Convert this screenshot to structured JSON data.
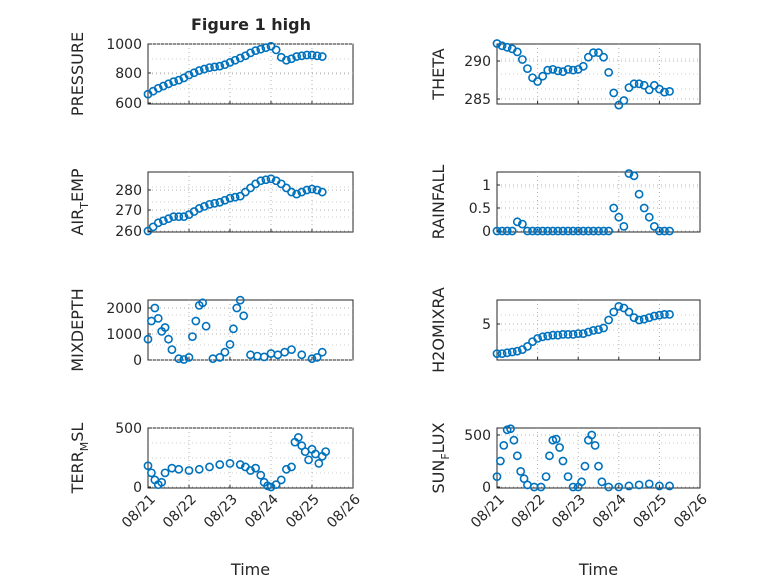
{
  "figure": {
    "title": "Figure 1 high",
    "marker_color": "#0072BD",
    "grid": true,
    "marker": "open-circle",
    "x_axis": {
      "label": "Time",
      "tick_labels": [
        "08/21",
        "08/22",
        "08/23",
        "08/24",
        "08/25",
        "08/26"
      ],
      "label_rotation_deg": -45
    }
  },
  "chart_data": [
    {
      "type": "scatter",
      "ylabel": "PRESSURE",
      "yticks": [
        "600",
        "800",
        "1000"
      ],
      "ylim": [
        600,
        1000
      ],
      "xlim": [
        "08/21",
        "08/26"
      ],
      "series": [
        {
          "x": [
            "08/21 00:00",
            "08/21 03:00",
            "08/21 06:00",
            "08/21 09:00",
            "08/21 12:00",
            "08/21 15:00",
            "08/21 18:00",
            "08/21 21:00",
            "08/22 00:00",
            "08/22 03:00",
            "08/22 06:00",
            "08/22 09:00",
            "08/22 12:00",
            "08/22 15:00",
            "08/22 18:00",
            "08/22 21:00",
            "08/23 00:00",
            "08/23 03:00",
            "08/23 06:00",
            "08/23 09:00",
            "08/23 12:00",
            "08/23 15:00",
            "08/23 18:00",
            "08/23 21:00",
            "08/24 00:00",
            "08/24 03:00",
            "08/24 06:00",
            "08/24 09:00",
            "08/24 12:00",
            "08/24 15:00",
            "08/24 18:00",
            "08/24 21:00",
            "08/25 00:00",
            "08/25 03:00",
            "08/25 06:00"
          ],
          "y": [
            660,
            680,
            700,
            715,
            730,
            745,
            755,
            770,
            790,
            805,
            820,
            830,
            840,
            845,
            850,
            860,
            875,
            890,
            905,
            920,
            940,
            955,
            965,
            975,
            985,
            960,
            910,
            890,
            900,
            915,
            920,
            925,
            925,
            920,
            915
          ]
        }
      ]
    },
    {
      "type": "scatter",
      "ylabel": "THETA",
      "yticks": [
        "285",
        "290"
      ],
      "ylim": [
        284,
        292.5
      ],
      "xlim": [
        "08/21",
        "08/26"
      ],
      "series": [
        {
          "x": [
            "08/21 00:00",
            "08/21 03:00",
            "08/21 06:00",
            "08/21 09:00",
            "08/21 12:00",
            "08/21 15:00",
            "08/21 18:00",
            "08/21 21:00",
            "08/22 00:00",
            "08/22 03:00",
            "08/22 06:00",
            "08/22 09:00",
            "08/22 12:00",
            "08/22 15:00",
            "08/22 18:00",
            "08/22 21:00",
            "08/23 00:00",
            "08/23 03:00",
            "08/23 06:00",
            "08/23 09:00",
            "08/23 12:00",
            "08/23 15:00",
            "08/23 18:00",
            "08/23 21:00",
            "08/24 00:00",
            "08/24 03:00",
            "08/24 06:00",
            "08/24 09:00",
            "08/24 12:00",
            "08/24 15:00",
            "08/24 18:00",
            "08/24 21:00",
            "08/25 00:00",
            "08/25 03:00",
            "08/25 06:00"
          ],
          "y": [
            292.3,
            292,
            291.8,
            291.6,
            291.2,
            290.2,
            289,
            287.8,
            287.3,
            288,
            288.8,
            288.9,
            288.7,
            288.6,
            288.9,
            288.8,
            288.9,
            289.3,
            290.5,
            291.1,
            291.1,
            290.5,
            288.5,
            285.8,
            284.2,
            284.8,
            286.5,
            287,
            287,
            286.8,
            286.2,
            286.8,
            286.3,
            285.9,
            286
          ],
          "_c": 0
        }
      ]
    },
    {
      "type": "scatter",
      "ylabel": "AIR_TEMP",
      "yticks": [
        "260",
        "270",
        "280"
      ],
      "ylim": [
        258,
        287
      ],
      "xlim": [
        "08/21",
        "08/26"
      ],
      "series": [
        {
          "x": [
            "08/21 00:00",
            "08/21 03:00",
            "08/21 06:00",
            "08/21 09:00",
            "08/21 12:00",
            "08/21 15:00",
            "08/21 18:00",
            "08/21 21:00",
            "08/22 00:00",
            "08/22 03:00",
            "08/22 06:00",
            "08/22 09:00",
            "08/22 12:00",
            "08/22 15:00",
            "08/22 18:00",
            "08/22 21:00",
            "08/23 00:00",
            "08/23 03:00",
            "08/23 06:00",
            "08/23 09:00",
            "08/23 12:00",
            "08/23 15:00",
            "08/23 18:00",
            "08/23 21:00",
            "08/24 00:00",
            "08/24 03:00",
            "08/24 06:00",
            "08/24 09:00",
            "08/24 12:00",
            "08/24 15:00",
            "08/24 18:00",
            "08/24 21:00",
            "08/25 00:00",
            "08/25 03:00",
            "08/25 06:00"
          ],
          "y": [
            260,
            262,
            264,
            265,
            266,
            267,
            267,
            267,
            268,
            269.5,
            271,
            272,
            273,
            273.5,
            274,
            275,
            276,
            276.5,
            277,
            279,
            281,
            283,
            284.5,
            285,
            285.5,
            284.5,
            283,
            281,
            279,
            278,
            279,
            280,
            280.5,
            280,
            279
          ]
        }
      ]
    },
    {
      "type": "scatter",
      "ylabel": "RAINFALL",
      "yticks": [
        "0",
        "0.5",
        "1"
      ],
      "ylim": [
        -0.05,
        1.3
      ],
      "xlim": [
        "08/21",
        "08/26"
      ],
      "series": [
        {
          "x": [
            "08/21 00:00",
            "08/21 03:00",
            "08/21 06:00",
            "08/21 09:00",
            "08/21 12:00",
            "08/21 15:00",
            "08/21 18:00",
            "08/21 21:00",
            "08/22 00:00",
            "08/22 03:00",
            "08/22 06:00",
            "08/22 09:00",
            "08/22 12:00",
            "08/22 15:00",
            "08/22 18:00",
            "08/22 21:00",
            "08/23 00:00",
            "08/23 03:00",
            "08/23 06:00",
            "08/23 09:00",
            "08/23 12:00",
            "08/23 15:00",
            "08/23 18:00",
            "08/23 21:00",
            "08/24 00:00",
            "08/24 03:00",
            "08/24 06:00",
            "08/24 09:00",
            "08/24 12:00",
            "08/24 15:00",
            "08/24 18:00",
            "08/24 21:00",
            "08/25 00:00",
            "08/25 03:00",
            "08/25 06:00"
          ],
          "y": [
            0,
            0,
            0,
            0,
            0.2,
            0.15,
            0,
            0,
            0,
            0,
            0,
            0,
            0,
            0,
            0,
            0,
            0,
            0,
            0,
            0,
            0,
            0,
            0,
            0.5,
            0.3,
            0.1,
            1.25,
            1.2,
            0.8,
            0.5,
            0.3,
            0.1,
            0,
            0,
            0
          ]
        }
      ]
    },
    {
      "type": "scatter",
      "ylabel": "MIXDEPTH",
      "yticks": [
        "0",
        "1000",
        "2000"
      ],
      "ylim": [
        -100,
        2400
      ],
      "xlim": [
        "08/21",
        "08/26"
      ],
      "series": [
        {
          "x": [
            "08/21 00:00",
            "08/21 02:00",
            "08/21 04:00",
            "08/21 06:00",
            "08/21 08:00",
            "08/21 10:00",
            "08/21 12:00",
            "08/21 14:00",
            "08/21 18:00",
            "08/21 21:00",
            "08/22 00:00",
            "08/22 02:00",
            "08/22 04:00",
            "08/22 06:00",
            "08/22 08:00",
            "08/22 10:00",
            "08/22 14:00",
            "08/22 18:00",
            "08/22 21:00",
            "08/23 00:00",
            "08/23 02:00",
            "08/23 04:00",
            "08/23 06:00",
            "08/23 08:00",
            "08/23 12:00",
            "08/23 16:00",
            "08/23 20:00",
            "08/24 00:00",
            "08/24 04:00",
            "08/24 08:00",
            "08/24 12:00",
            "08/24 18:00",
            "08/25 00:00",
            "08/25 03:00",
            "08/25 06:00"
          ],
          "y": [
            800,
            1500,
            2000,
            1600,
            1100,
            1250,
            800,
            400,
            50,
            20,
            100,
            900,
            1500,
            2100,
            2200,
            1300,
            50,
            100,
            300,
            600,
            1200,
            2000,
            2300,
            1700,
            200,
            150,
            120,
            250,
            200,
            300,
            400,
            200,
            50,
            100,
            300
          ]
        }
      ]
    },
    {
      "type": "scatter",
      "ylabel": "H2OMIXRA",
      "yticks": [
        "5"
      ],
      "ylim": [
        0.5,
        8
      ],
      "xlim": [
        "08/21",
        "08/26"
      ],
      "series": [
        {
          "x": [
            "08/21 00:00",
            "08/21 03:00",
            "08/21 06:00",
            "08/21 09:00",
            "08/21 12:00",
            "08/21 15:00",
            "08/21 18:00",
            "08/21 21:00",
            "08/22 00:00",
            "08/22 03:00",
            "08/22 06:00",
            "08/22 09:00",
            "08/22 12:00",
            "08/22 15:00",
            "08/22 18:00",
            "08/22 21:00",
            "08/23 00:00",
            "08/23 03:00",
            "08/23 06:00",
            "08/23 09:00",
            "08/23 12:00",
            "08/23 15:00",
            "08/23 18:00",
            "08/23 21:00",
            "08/24 00:00",
            "08/24 03:00",
            "08/24 06:00",
            "08/24 09:00",
            "08/24 12:00",
            "08/24 15:00",
            "08/24 18:00",
            "08/24 21:00",
            "08/25 00:00",
            "08/25 03:00",
            "08/25 06:00"
          ],
          "y": [
            1.3,
            1.3,
            1.4,
            1.5,
            1.6,
            1.8,
            2.2,
            2.8,
            3.2,
            3.4,
            3.5,
            3.6,
            3.6,
            3.7,
            3.7,
            3.7,
            3.8,
            3.8,
            4.0,
            4.2,
            4.3,
            4.5,
            5.5,
            6.5,
            7.2,
            7.0,
            6.5,
            5.8,
            5.5,
            5.6,
            5.8,
            6.0,
            6.1,
            6.2,
            6.2
          ]
        }
      ]
    },
    {
      "type": "scatter",
      "ylabel": "TERR_MSL",
      "yticks": [
        "0",
        "500"
      ],
      "ylim": [
        -20,
        530
      ],
      "xlim": [
        "08/21",
        "08/26"
      ],
      "series": [
        {
          "x": [
            "08/21 00:00",
            "08/21 02:00",
            "08/21 04:00",
            "08/21 06:00",
            "08/21 08:00",
            "08/21 10:00",
            "08/21 14:00",
            "08/21 18:00",
            "08/22 00:00",
            "08/22 06:00",
            "08/22 12:00",
            "08/22 18:00",
            "08/23 00:00",
            "08/23 06:00",
            "08/23 09:00",
            "08/23 12:00",
            "08/23 15:00",
            "08/23 18:00",
            "08/23 20:00",
            "08/23 22:00",
            "08/24 00:00",
            "08/24 03:00",
            "08/24 06:00",
            "08/24 09:00",
            "08/24 12:00",
            "08/24 14:00",
            "08/24 16:00",
            "08/24 18:00",
            "08/24 20:00",
            "08/24 22:00",
            "08/25 00:00",
            "08/25 02:00",
            "08/25 04:00",
            "08/25 06:00",
            "08/25 08:00"
          ],
          "y": [
            180,
            120,
            60,
            20,
            40,
            120,
            160,
            150,
            140,
            150,
            170,
            190,
            200,
            190,
            170,
            140,
            160,
            100,
            40,
            10,
            0,
            20,
            60,
            150,
            170,
            380,
            420,
            350,
            300,
            230,
            320,
            280,
            200,
            260,
            300
          ]
        }
      ]
    },
    {
      "type": "scatter",
      "ylabel": "SUN_FLUX",
      "yticks": [
        "0",
        "500"
      ],
      "ylim": [
        -20,
        600
      ],
      "xlim": [
        "08/21",
        "08/26"
      ],
      "series": [
        {
          "x": [
            "08/21 00:00",
            "08/21 02:00",
            "08/21 04:00",
            "08/21 06:00",
            "08/21 08:00",
            "08/21 10:00",
            "08/21 12:00",
            "08/21 14:00",
            "08/21 16:00",
            "08/21 18:00",
            "08/21 22:00",
            "08/22 02:00",
            "08/22 05:00",
            "08/22 07:00",
            "08/22 09:00",
            "08/22 11:00",
            "08/22 13:00",
            "08/22 15:00",
            "08/22 18:00",
            "08/22 21:00",
            "08/23 00:00",
            "08/23 02:00",
            "08/23 04:00",
            "08/23 06:00",
            "08/23 08:00",
            "08/23 10:00",
            "08/23 12:00",
            "08/23 14:00",
            "08/23 18:00",
            "08/24 00:00",
            "08/24 06:00",
            "08/24 12:00",
            "08/24 18:00",
            "08/25 00:00",
            "08/25 06:00"
          ],
          "y": [
            100,
            250,
            400,
            550,
            560,
            450,
            300,
            150,
            80,
            20,
            0,
            0,
            100,
            300,
            450,
            460,
            380,
            250,
            100,
            0,
            0,
            50,
            200,
            450,
            500,
            400,
            200,
            50,
            0,
            0,
            10,
            20,
            30,
            10,
            10
          ]
        }
      ]
    }
  ]
}
